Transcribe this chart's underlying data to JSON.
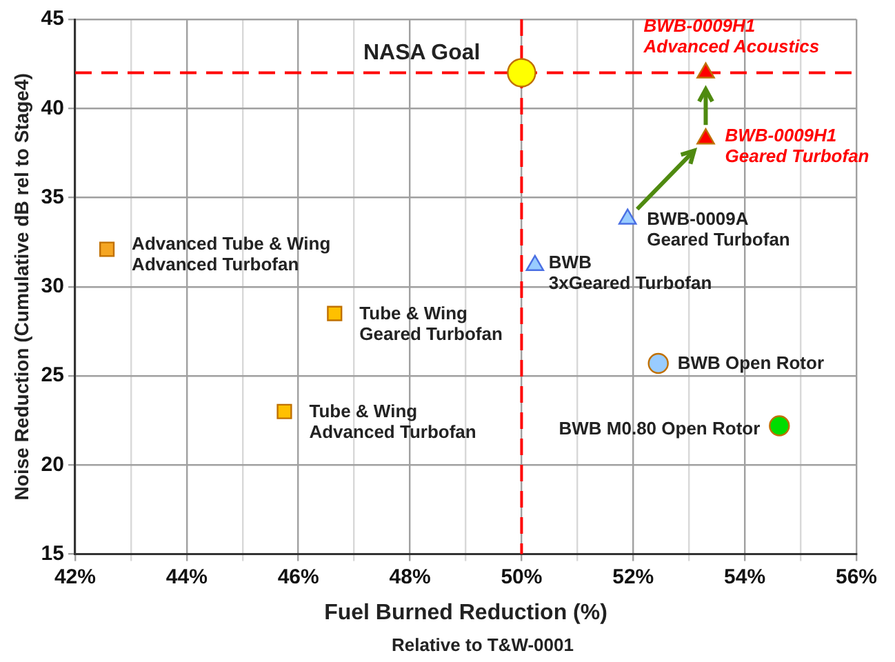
{
  "chart_data": {
    "type": "scatter",
    "xlabel": "Fuel Burned Reduction (%)",
    "ylabel": "Noise Reduction (Cumulative dB rel to Stage4)",
    "annotations": [
      "Relative to T&W-0001"
    ],
    "xlim": [
      42,
      56
    ],
    "ylim": [
      15,
      45
    ],
    "xticks": [
      {
        "value": 42,
        "label": "42%"
      },
      {
        "value": 43,
        "label": null
      },
      {
        "value": 44,
        "label": "44%"
      },
      {
        "value": 45,
        "label": null
      },
      {
        "value": 46,
        "label": "46%"
      },
      {
        "value": 47,
        "label": null
      },
      {
        "value": 48,
        "label": "48%"
      },
      {
        "value": 49,
        "label": null
      },
      {
        "value": 50,
        "label": "50%"
      },
      {
        "value": 51,
        "label": null
      },
      {
        "value": 52,
        "label": "52%"
      },
      {
        "value": 53,
        "label": null
      },
      {
        "value": 54,
        "label": "54%"
      },
      {
        "value": 55,
        "label": null
      },
      {
        "value": 56,
        "label": "56%"
      }
    ],
    "yticks": [
      15,
      20,
      25,
      30,
      35,
      40,
      45
    ],
    "grid": true,
    "ref_lines": [
      {
        "axis": "x",
        "value": 50,
        "color": "#ff0000",
        "line_style": "dashed"
      },
      {
        "axis": "y",
        "value": 42,
        "color": "#ff0000",
        "line_style": "dashed"
      }
    ],
    "series": [
      {
        "name": "Advanced Tube & Wing\nAdvanced Turbofan",
        "color": "#f5a623",
        "marker": "square",
        "x": [
          42.57
        ],
        "values": [
          32.1
        ]
      },
      {
        "name": "Tube & Wing\nGeared Turbofan",
        "color": "#ffc000",
        "marker": "square",
        "x": [
          46.65
        ],
        "values": [
          28.5
        ]
      },
      {
        "name": "Tube & Wing\nAdvanced Turbofan",
        "color": "#ffc000",
        "marker": "square",
        "x": [
          45.75
        ],
        "values": [
          23.0
        ]
      },
      {
        "name": "NASA Goal",
        "color": "#ffff00",
        "marker": "circle",
        "x": [
          50.0
        ],
        "values": [
          42.0
        ]
      },
      {
        "name": "BWB\n3xGeared Turbofan",
        "color": "#99ccff",
        "marker": "triangle",
        "x": [
          50.24
        ],
        "values": [
          31.2
        ]
      },
      {
        "name": "BWB-0009A\nGeared Turbofan",
        "color": "#99ccff",
        "marker": "triangle",
        "x": [
          51.9
        ],
        "values": [
          33.8
        ]
      },
      {
        "name": "BWB-0009H1\nGeared Turbofan",
        "color": "#ff0000",
        "marker": "triangle",
        "x": [
          53.3
        ],
        "values": [
          38.3
        ]
      },
      {
        "name": "BWB-0009H1\nAdvanced Acoustics",
        "color": "#ff0000",
        "marker": "triangle",
        "x": [
          53.3
        ],
        "values": [
          42.0
        ]
      },
      {
        "name": "BWB Open Rotor",
        "color": "#99ccff",
        "marker": "circle",
        "x": [
          52.45
        ],
        "values": [
          25.7
        ]
      },
      {
        "name": "BWB M0.80 Open Rotor",
        "color": "#00dd00",
        "marker": "circle",
        "x": [
          54.62
        ],
        "values": [
          22.2
        ]
      }
    ]
  }
}
